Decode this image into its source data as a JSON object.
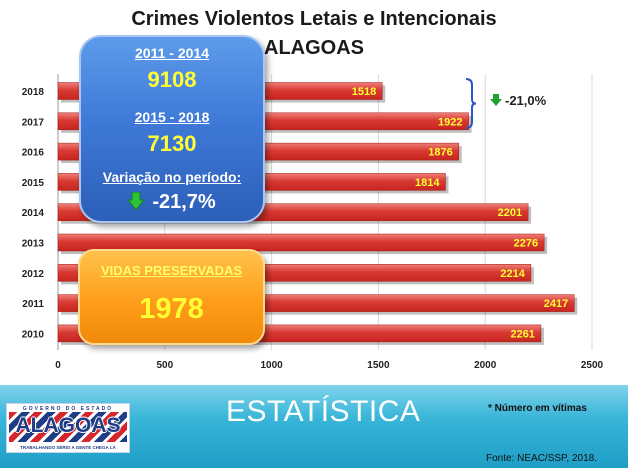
{
  "header": {
    "title": "Crimes Violentos Letais e Intencionais",
    "subtitle": "ALAGOAS"
  },
  "summary": {
    "period1_label": "2011 - 2014",
    "period1_value": "9108",
    "period2_label": "2015 - 2018",
    "period2_value": "7130",
    "variation_label": "Variação no período:",
    "variation_value": "-21,7%",
    "lives_label": "VIDAS PRESERVADAS",
    "lives_value": "1978"
  },
  "callout": {
    "value": "-21,0%"
  },
  "footer": {
    "section_title": "ESTATÍSTICA",
    "note": "* Número em vítimas",
    "source": "Fonte: NEAC/SSP, 2018."
  },
  "logo": {
    "top_text": "GOVERNO DO ESTADO",
    "name": "ALAGOAS",
    "tagline": "TRABALHANDO SÉRIO A GENTE CHEGA LÁ"
  },
  "colors": {
    "bar": "#c8241f",
    "bar_highlight": "#ef7f78",
    "value_label": "#ffff33",
    "callout_arrow": "#22a036",
    "footer": "#2aaad3"
  },
  "chart_data": {
    "type": "bar",
    "orientation": "horizontal",
    "categories": [
      "2018",
      "2017",
      "2016",
      "2015",
      "2014",
      "2013",
      "2012",
      "2011",
      "2010"
    ],
    "values": [
      1518,
      1922,
      1876,
      1814,
      2201,
      2276,
      2214,
      2417,
      2261
    ],
    "xlim": [
      0,
      2500
    ],
    "xticks": [
      0,
      500,
      1000,
      1500,
      2000,
      2500
    ],
    "grid": true
  }
}
